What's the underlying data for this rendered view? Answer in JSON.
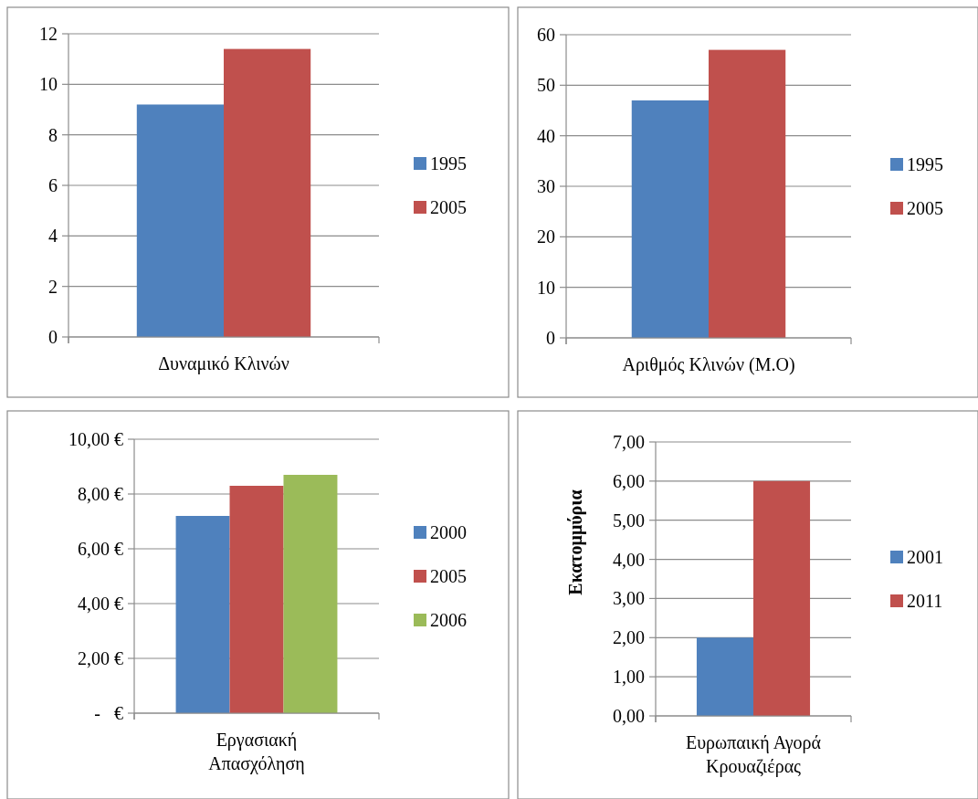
{
  "chart_data": [
    {
      "type": "bar",
      "categories": [
        "Δυναμικό Κλινών"
      ],
      "series": [
        {
          "name": "1995",
          "color": "#4f81bd",
          "values": [
            9.2
          ]
        },
        {
          "name": "2005",
          "color": "#c0504d",
          "values": [
            11.4
          ]
        }
      ],
      "ylim": [
        0,
        12
      ],
      "yticks": [
        0,
        2,
        4,
        6,
        8,
        10,
        12
      ],
      "grid": "y",
      "legend": "right"
    },
    {
      "type": "bar",
      "categories": [
        "Αριθμός Κλινών (Μ.Ο)"
      ],
      "series": [
        {
          "name": "1995",
          "color": "#4f81bd",
          "values": [
            47
          ]
        },
        {
          "name": "2005",
          "color": "#c0504d",
          "values": [
            57
          ]
        }
      ],
      "ylim": [
        0,
        60
      ],
      "yticks": [
        0,
        10,
        20,
        30,
        40,
        50,
        60
      ],
      "grid": "y",
      "legend": "right"
    },
    {
      "type": "bar",
      "categories": [
        "Εργασιακή Απασχόληση"
      ],
      "series": [
        {
          "name": "2000",
          "color": "#4f81bd",
          "values": [
            7.2
          ]
        },
        {
          "name": "2005",
          "color": "#c0504d",
          "values": [
            8.3
          ]
        },
        {
          "name": "2006",
          "color": "#9bbb59",
          "values": [
            8.7
          ]
        }
      ],
      "ylim": [
        0,
        10
      ],
      "yticks": [
        {
          "value": 0,
          "label": "-   €"
        },
        {
          "value": 2,
          "label": "2,00 €"
        },
        {
          "value": 4,
          "label": "4,00 €"
        },
        {
          "value": 6,
          "label": "6,00 €"
        },
        {
          "value": 8,
          "label": "8,00 €"
        },
        {
          "value": 10,
          "label": "10,00 €"
        }
      ],
      "grid": "y",
      "legend": "right"
    },
    {
      "type": "bar",
      "categories": [
        "Ευρωπαική Αγορά Κρουαζιέρας"
      ],
      "ylabel": "Εκατομμύρια",
      "series": [
        {
          "name": "2001",
          "color": "#4f81bd",
          "values": [
            2.0
          ]
        },
        {
          "name": "2011",
          "color": "#c0504d",
          "values": [
            6.0
          ]
        }
      ],
      "ylim": [
        0,
        7
      ],
      "yticks": [
        {
          "value": 0,
          "label": "0,00"
        },
        {
          "value": 1,
          "label": "1,00"
        },
        {
          "value": 2,
          "label": "2,00"
        },
        {
          "value": 3,
          "label": "3,00"
        },
        {
          "value": 4,
          "label": "4,00"
        },
        {
          "value": 5,
          "label": "5,00"
        },
        {
          "value": 6,
          "label": "6,00"
        },
        {
          "value": 7,
          "label": "7,00"
        }
      ],
      "grid": "y",
      "legend": "right"
    }
  ]
}
